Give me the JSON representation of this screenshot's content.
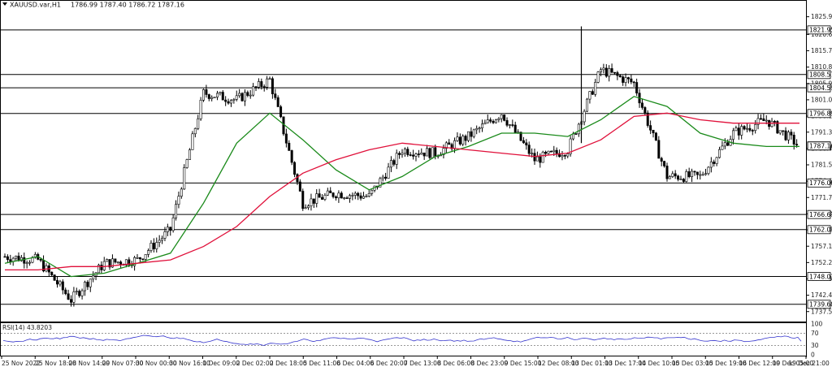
{
  "header": {
    "symbol": "XAUUSD.var,H1",
    "ohlc": "1786.99 1787.40 1786.72 1787.16"
  },
  "price_axis": {
    "ticks": [
      1825.9,
      1820.6,
      1815.7,
      1810.8,
      1805.9,
      1801.0,
      1796.1,
      1791.3,
      1786.4,
      1781.5,
      1776.6,
      1771.7,
      1766.8,
      1762.0,
      1757.1,
      1752.2,
      1747.3,
      1742.4,
      1737.5
    ],
    "levels": [
      "1821.95",
      "1808.57",
      "1804.59",
      "1796.89",
      "1776.06",
      "1766.61",
      "1762.07",
      "1748.01",
      "1739.68"
    ],
    "current": "1787.16"
  },
  "rsi": {
    "label": "RSI(14) 43.8203",
    "ticks": [
      "100",
      "70",
      "30",
      "0"
    ]
  },
  "time_axis": {
    "labels": [
      "25 Nov 2022",
      "25 Nov 18:00",
      "28 Nov 14:00",
      "29 Nov 07:00",
      "30 Nov 00:00",
      "30 Nov 16:00",
      "1 Dec 09:00",
      "2 Dec 02:00",
      "2 Dec 18:00",
      "5 Dec 11:00",
      "6 Dec 04:00",
      "6 Dec 20:00",
      "7 Dec 13:00",
      "8 Dec 06:00",
      "8 Dec 23:00",
      "9 Dec 15:00",
      "12 Dec 08:00",
      "13 Dec 01:00",
      "13 Dec 17:00",
      "14 Dec 10:00",
      "15 Dec 03:00",
      "15 Dec 19:00",
      "16 Dec 12:00",
      "19 Dec 05:00",
      "19 Dec 21:00"
    ]
  },
  "icons": {
    "menu": "triangle-down-icon"
  },
  "colors": {
    "bg": "#ffffff",
    "candle": "#000000",
    "ma_fast": "#1a8a1a",
    "ma_slow": "#e0103a",
    "level": "#000000",
    "rsi": "#3333cc",
    "pill_border": "#000000",
    "current_pill": "#000000"
  },
  "chart_data": {
    "type": "candlestick",
    "symbol": "XAUUSD.var",
    "timeframe": "H1",
    "ylim": [
      1735,
      1828
    ],
    "x": [
      "25 Nov 2022",
      "25 Nov 18:00",
      "28 Nov 14:00",
      "29 Nov 07:00",
      "30 Nov 00:00",
      "30 Nov 16:00",
      "1 Dec 09:00",
      "2 Dec 02:00",
      "2 Dec 18:00",
      "5 Dec 11:00",
      "6 Dec 04:00",
      "6 Dec 20:00",
      "7 Dec 13:00",
      "8 Dec 06:00",
      "8 Dec 23:00",
      "9 Dec 15:00",
      "12 Dec 08:00",
      "13 Dec 01:00",
      "13 Dec 17:00",
      "14 Dec 10:00",
      "15 Dec 03:00",
      "15 Dec 19:00",
      "16 Dec 12:00",
      "19 Dec 05:00",
      "19 Dec 21:00"
    ],
    "close": [
      1754,
      1753,
      1741,
      1752,
      1753,
      1762,
      1803,
      1801,
      1807,
      1770,
      1773,
      1772,
      1786,
      1785,
      1790,
      1797,
      1783,
      1786,
      1810,
      1806,
      1778,
      1778,
      1791,
      1795,
      1787.16
    ],
    "high": [
      1756,
      1762,
      1745,
      1756,
      1757,
      1770,
      1806,
      1804,
      1809,
      1798,
      1780,
      1776,
      1789,
      1789,
      1798,
      1807,
      1794,
      1790,
      1823,
      1812,
      1802,
      1781,
      1795,
      1798,
      1790
    ],
    "low": [
      1748,
      1745,
      1739,
      1746,
      1750,
      1745,
      1770,
      1782,
      1782,
      1766,
      1767,
      1768,
      1770,
      1776,
      1780,
      1792,
      1779,
      1779,
      1787,
      1804,
      1776,
      1776,
      1777,
      1789,
      1785
    ],
    "series": [
      {
        "name": "MA fast",
        "values": [
          1752,
          1754,
          1748,
          1749,
          1752,
          1755,
          1770,
          1788,
          1797,
          1789,
          1780,
          1774,
          1778,
          1784,
          1787,
          1791,
          1791,
          1790,
          1795,
          1802,
          1799,
          1791,
          1788,
          1787,
          1787
        ]
      },
      {
        "name": "MA slow",
        "values": [
          1750,
          1750,
          1751,
          1751,
          1752,
          1753,
          1757,
          1763,
          1772,
          1779,
          1783,
          1786,
          1788,
          1787,
          1786,
          1785,
          1784,
          1785,
          1789,
          1796,
          1797,
          1795,
          1794,
          1794,
          1794
        ]
      }
    ],
    "levels": [
      1821.95,
      1808.57,
      1804.59,
      1796.89,
      1776.06,
      1766.61,
      1762.07,
      1748.01,
      1739.68
    ],
    "rsi": {
      "name": "RSI(14)",
      "last": 43.8203,
      "levels": [
        70,
        30
      ]
    }
  }
}
